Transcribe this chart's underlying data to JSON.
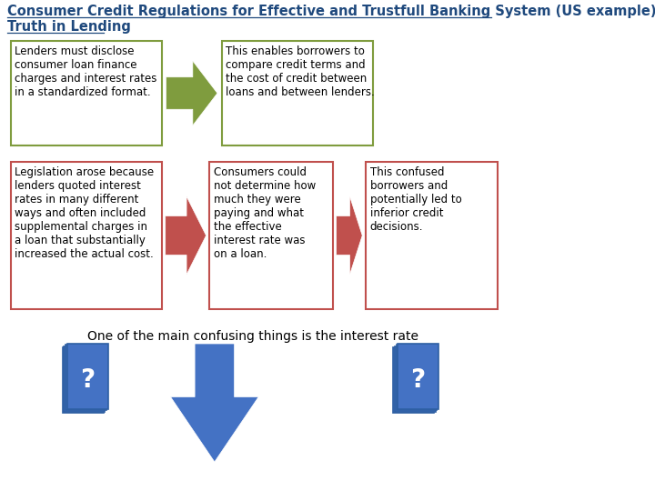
{
  "title_line1": "Consumer Credit Regulations for Effective and Trustfull Banking System (US example)",
  "title_line2": "Truth in Lending",
  "title_color": "#1F497D",
  "bg_color": "#FFFFFF",
  "box1_text": "Lenders must disclose\nconsumer loan finance\ncharges and interest rates\nin a standardized format.",
  "box2_text": "This enables borrowers to\ncompare credit terms and\nthe cost of credit between\nloans and between lenders.",
  "box3_text": "Legislation arose because\nlenders quoted interest\nrates in many different\nways and often included\nsupplemental charges in\na loan that substantially\nincreased the actual cost.",
  "box4_text": "Consumers could\nnot determine how\nmuch they were\npaying and what\nthe effective\ninterest rate was\non a loan.",
  "box5_text": "This confused\nborrowers and\npotentially led to\ninferior credit\ndecisions.",
  "green_border": "#7F9C3E",
  "red_border": "#C0504D",
  "green_arrow": "#7F9C3E",
  "red_arrow": "#C0504D",
  "blue_color": "#4472C4",
  "bottom_text": "One of the main confusing things is the interest rate",
  "font_size": 8.5,
  "title_fontsize": 10.5
}
